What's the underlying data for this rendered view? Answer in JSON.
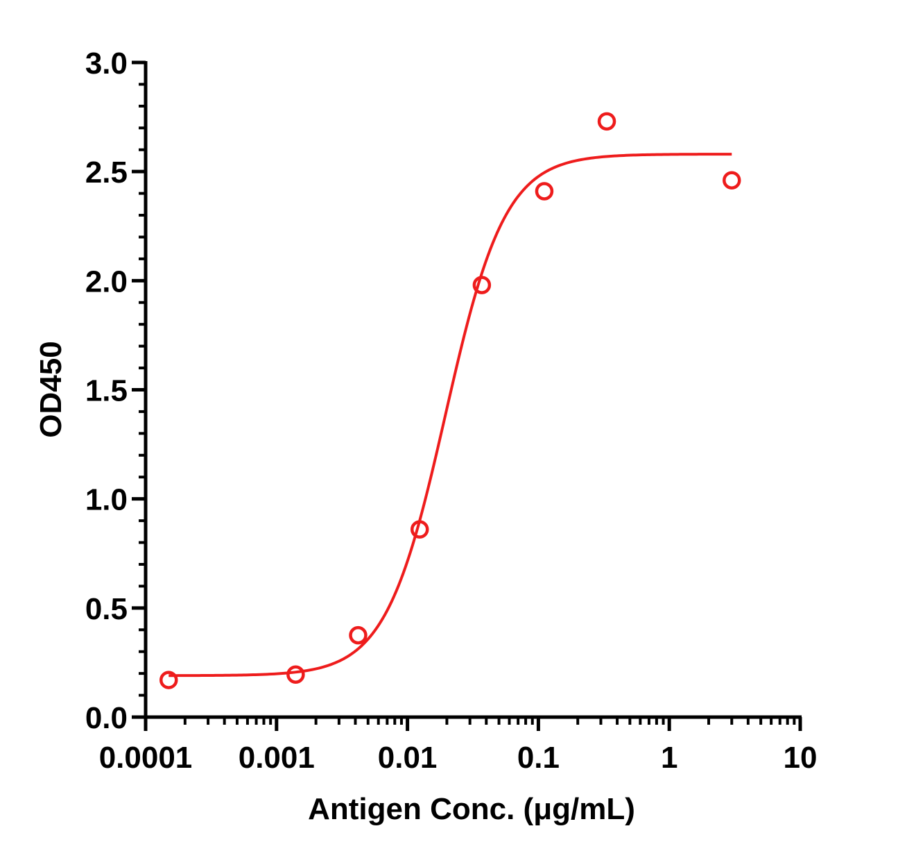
{
  "chart_data": {
    "type": "scatter",
    "title": "",
    "xlabel": "Antigen Conc. (μg/mL)",
    "ylabel": "OD450",
    "xscale": "log",
    "xlim": [
      0.0001,
      10
    ],
    "ylim": [
      0,
      3.0
    ],
    "grid": false,
    "xtick_labels": [
      "0.0001",
      "0.001",
      "0.01",
      "0.1",
      "1",
      "10"
    ],
    "ytick_labels": [
      "0.0",
      "0.5",
      "1.0",
      "1.5",
      "2.0",
      "2.5",
      "3.0"
    ],
    "color": "#ee1c1c",
    "series": [
      {
        "marker": "open-circle",
        "x": [
          0.00015,
          0.0014,
          0.0042,
          0.0124,
          0.037,
          0.111,
          0.333,
          3.0
        ],
        "y": [
          0.17,
          0.195,
          0.375,
          0.86,
          1.98,
          2.41,
          2.73,
          2.46
        ]
      },
      {
        "kind": "fit-curve",
        "bottom": 0.19,
        "top": 2.58,
        "ec50": 0.0195,
        "hill": 1.9,
        "x_range": [
          0.00015,
          3.0
        ]
      }
    ]
  }
}
